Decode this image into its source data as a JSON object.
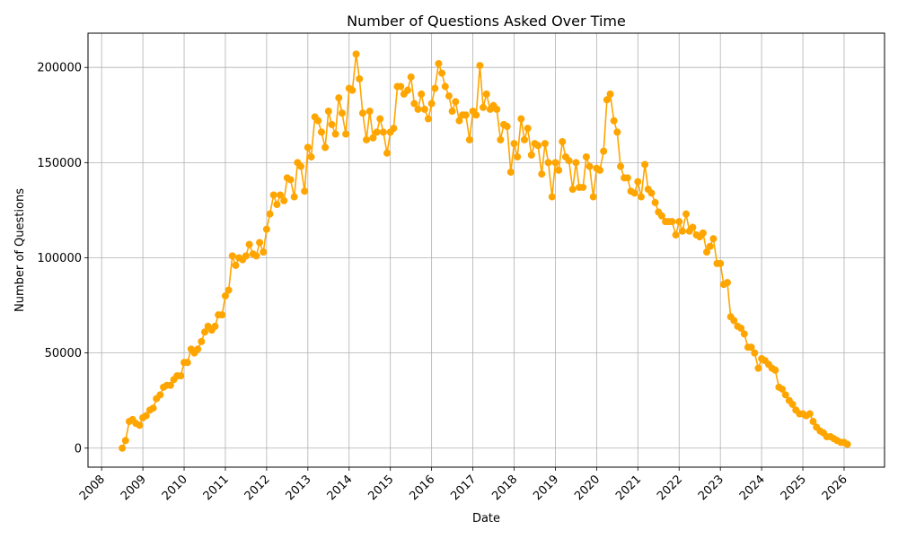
{
  "chart_data": {
    "type": "line",
    "title": "Number of Questions Asked Over Time",
    "xlabel": "Date",
    "ylabel": "Number of Questions",
    "x_ticks": [
      "2008",
      "2009",
      "2010",
      "2011",
      "2012",
      "2013",
      "2014",
      "2015",
      "2016",
      "2017",
      "2018",
      "2019",
      "2020",
      "2021",
      "2022",
      "2023",
      "2024",
      "2025",
      "2026"
    ],
    "y_ticks": [
      "0",
      "50000",
      "100000",
      "150000",
      "200000"
    ],
    "xlim": [
      2007.67,
      2026.98
    ],
    "ylim": [
      -10000,
      218000
    ],
    "grid": true,
    "line_color": "#FFA500",
    "series": [
      {
        "x": [
          2008.5,
          2008.58,
          2008.67,
          2008.75,
          2008.83,
          2008.92,
          2009.0,
          2009.08,
          2009.17,
          2009.25,
          2009.33,
          2009.42,
          2009.5,
          2009.58,
          2009.67,
          2009.75,
          2009.83,
          2009.92,
          2010.0,
          2010.08,
          2010.17,
          2010.25,
          2010.33,
          2010.42,
          2010.5,
          2010.58,
          2010.67,
          2010.75,
          2010.83,
          2010.92,
          2011.0,
          2011.08,
          2011.17,
          2011.25,
          2011.33,
          2011.42,
          2011.5,
          2011.58,
          2011.67,
          2011.75,
          2011.83,
          2011.92,
          2012.0,
          2012.08,
          2012.17,
          2012.25,
          2012.33,
          2012.42,
          2012.5,
          2012.58,
          2012.67,
          2012.75,
          2012.83,
          2012.92,
          2013.0,
          2013.08,
          2013.17,
          2013.25,
          2013.33,
          2013.42,
          2013.5,
          2013.58,
          2013.67,
          2013.75,
          2013.83,
          2013.92,
          2014.0,
          2014.08,
          2014.17,
          2014.25,
          2014.33,
          2014.42,
          2014.5,
          2014.58,
          2014.67,
          2014.75,
          2014.83,
          2014.92,
          2015.0,
          2015.08,
          2015.17,
          2015.25,
          2015.33,
          2015.42,
          2015.5,
          2015.58,
          2015.67,
          2015.75,
          2015.83,
          2015.92,
          2016.0,
          2016.08,
          2016.17,
          2016.25,
          2016.33,
          2016.42,
          2016.5,
          2016.58,
          2016.67,
          2016.75,
          2016.83,
          2016.92,
          2017.0,
          2017.08,
          2017.17,
          2017.25,
          2017.33,
          2017.42,
          2017.5,
          2017.58,
          2017.67,
          2017.75,
          2017.83,
          2017.92,
          2018.0,
          2018.08,
          2018.17,
          2018.25,
          2018.33,
          2018.42,
          2018.5,
          2018.58,
          2018.67,
          2018.75,
          2018.83,
          2018.92,
          2019.0,
          2019.08,
          2019.17,
          2019.25,
          2019.33,
          2019.42,
          2019.5,
          2019.58,
          2019.67,
          2019.75,
          2019.83,
          2019.92,
          2020.0,
          2020.08,
          2020.17,
          2020.25,
          2020.33,
          2020.42,
          2020.5,
          2020.58,
          2020.67,
          2020.75,
          2020.83,
          2020.92,
          2021.0,
          2021.08,
          2021.17,
          2021.25,
          2021.33,
          2021.42,
          2021.5,
          2021.58,
          2021.67,
          2021.75,
          2021.83,
          2021.92,
          2022.0,
          2022.08,
          2022.17,
          2022.25,
          2022.33,
          2022.42,
          2022.5,
          2022.58,
          2022.67,
          2022.75,
          2022.83,
          2022.92,
          2023.0,
          2023.08,
          2023.17,
          2023.25,
          2023.33,
          2023.42,
          2023.5,
          2023.58,
          2023.67,
          2023.75,
          2023.83,
          2023.92,
          2024.0,
          2024.08,
          2024.17,
          2024.25,
          2024.33,
          2024.42,
          2024.5,
          2024.58,
          2024.67,
          2024.75,
          2024.83,
          2024.92,
          2025.0,
          2025.08,
          2025.17,
          2025.25,
          2025.33,
          2025.42,
          2025.5,
          2025.58,
          2025.67,
          2025.75,
          2025.83,
          2025.92,
          2026.0,
          2026.08
        ],
        "values": [
          0,
          4000,
          14000,
          15000,
          13000,
          12000,
          16000,
          17000,
          20000,
          21000,
          26000,
          28000,
          32000,
          33000,
          33000,
          36000,
          38000,
          38000,
          45000,
          45000,
          52000,
          50000,
          52000,
          56000,
          61000,
          64000,
          62000,
          64000,
          70000,
          70000,
          80000,
          83000,
          101000,
          96000,
          100000,
          99000,
          101000,
          107000,
          102000,
          101000,
          108000,
          103000,
          115000,
          123000,
          133000,
          128000,
          133000,
          130000,
          142000,
          141000,
          132000,
          150000,
          148000,
          135000,
          158000,
          153000,
          174000,
          172000,
          166000,
          158000,
          177000,
          170000,
          165000,
          184000,
          176000,
          165000,
          189000,
          188000,
          207000,
          194000,
          176000,
          162000,
          177000,
          163000,
          166000,
          173000,
          166000,
          155000,
          166000,
          168000,
          190000,
          190000,
          186000,
          188000,
          195000,
          181000,
          178000,
          186000,
          178000,
          173000,
          181000,
          189000,
          202000,
          197000,
          190000,
          185000,
          177000,
          182000,
          172000,
          175000,
          175000,
          162000,
          177000,
          175000,
          201000,
          179000,
          186000,
          178000,
          180000,
          178000,
          162000,
          170000,
          169000,
          145000,
          160000,
          153000,
          173000,
          162000,
          168000,
          154000,
          160000,
          159000,
          144000,
          160000,
          150000,
          132000,
          150000,
          146000,
          161000,
          153000,
          151000,
          136000,
          150000,
          137000,
          137000,
          153000,
          148000,
          132000,
          147000,
          146000,
          156000,
          183000,
          186000,
          172000,
          166000,
          148000,
          142000,
          142000,
          135000,
          134000,
          140000,
          132000,
          149000,
          136000,
          134000,
          129000,
          124000,
          122000,
          119000,
          119000,
          119000,
          112000,
          119000,
          114000,
          123000,
          114000,
          116000,
          112000,
          111000,
          113000,
          103000,
          106000,
          110000,
          97000,
          97000,
          86000,
          87000,
          69000,
          67000,
          64000,
          63000,
          60000,
          53000,
          53000,
          50000,
          42000,
          47000,
          46000,
          44000,
          42000,
          41000,
          32000,
          31000,
          28000,
          25000,
          23000,
          20000,
          18000,
          18000,
          17000,
          18000,
          14000,
          11000,
          9000,
          8000,
          6000,
          6000,
          5000,
          4000,
          3000,
          3000,
          2000
        ]
      }
    ]
  }
}
